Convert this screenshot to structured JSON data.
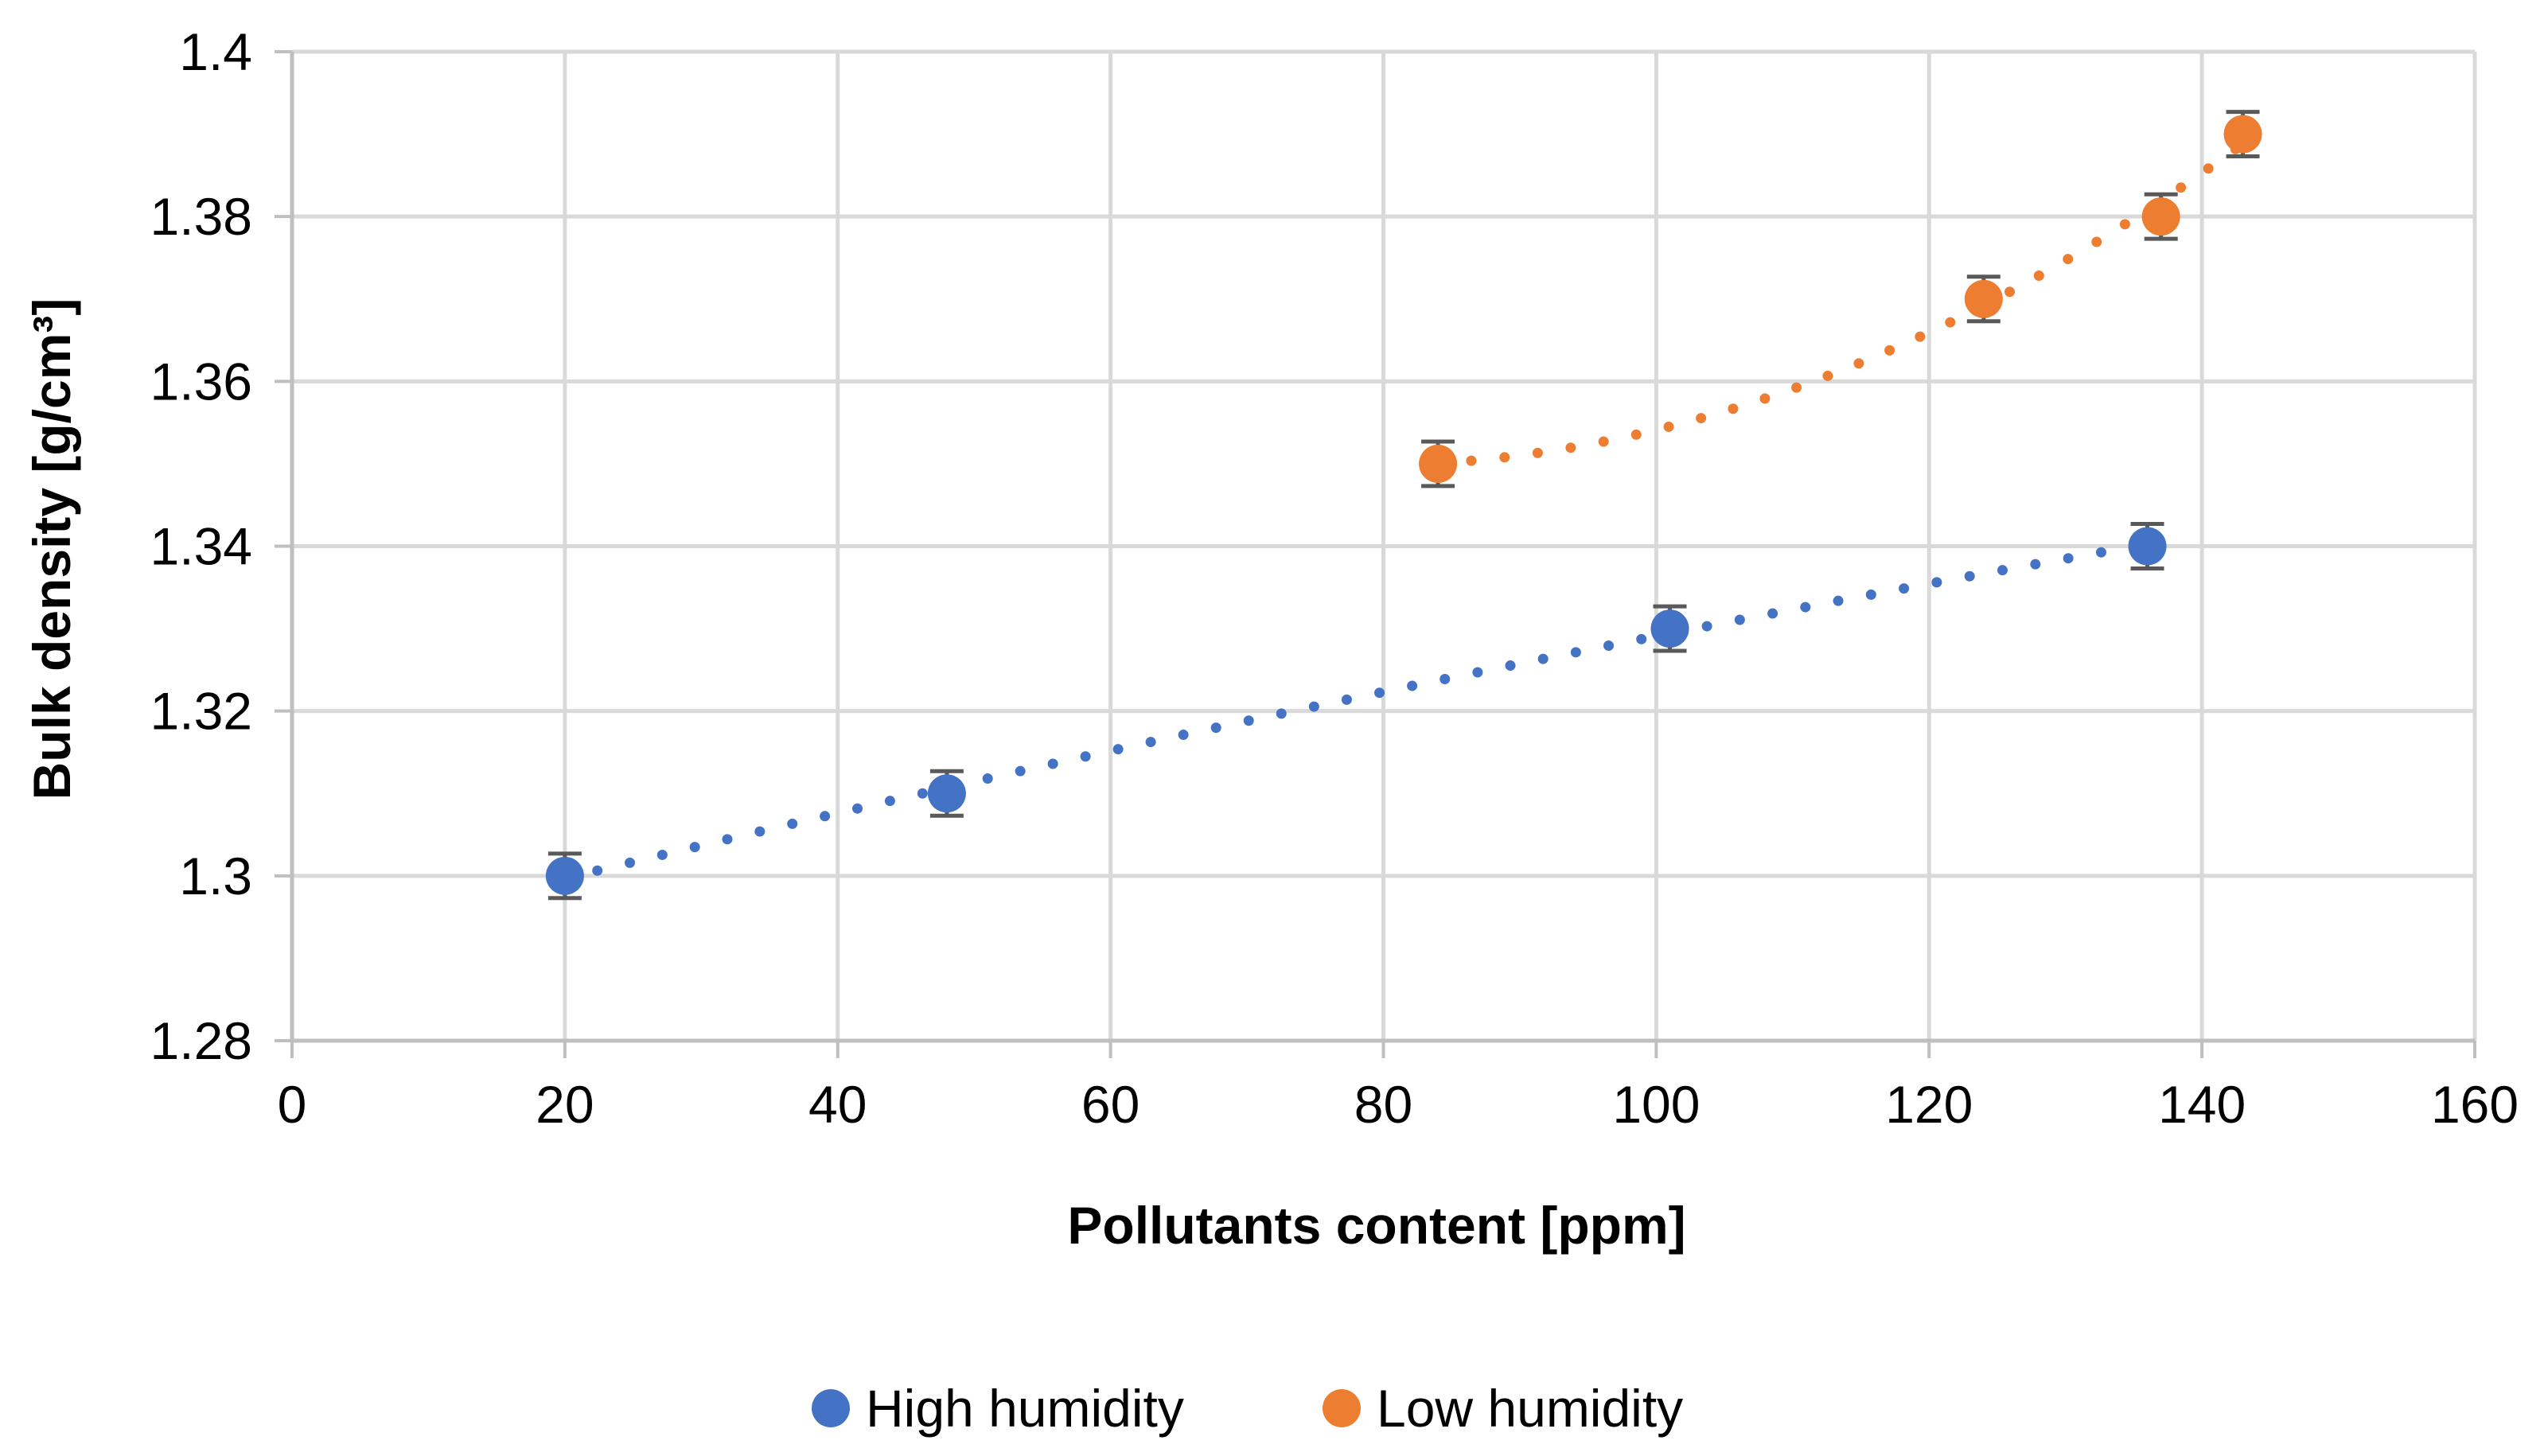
{
  "chart_data": {
    "type": "scatter",
    "title": "",
    "xlabel": "Pollutants content [ppm]",
    "ylabel": "Bulk density [g/cm³]",
    "xlim": [
      0,
      160
    ],
    "ylim": [
      1.28,
      1.4
    ],
    "x_ticks": [
      0,
      20,
      40,
      60,
      80,
      100,
      120,
      140,
      160
    ],
    "x_tick_labels": [
      "0",
      "20",
      "40",
      "60",
      "80",
      "100",
      "120",
      "140",
      "160"
    ],
    "y_ticks": [
      1.28,
      1.3,
      1.32,
      1.34,
      1.36,
      1.38,
      1.4
    ],
    "y_tick_labels": [
      "1.28",
      "1.3",
      "1.32",
      "1.34",
      "1.36",
      "1.38",
      "1.4"
    ],
    "grid": true,
    "legend_position": "bottom",
    "error_bar": 0.0027,
    "series": [
      {
        "name": "High humidity",
        "color": "#4472C4",
        "x": [
          20,
          48,
          101,
          136
        ],
        "y": [
          1.3,
          1.31,
          1.33,
          1.34
        ],
        "trendline": {
          "type": "polynomial",
          "style": "dotted",
          "x_range": [
            20,
            136
          ]
        }
      },
      {
        "name": "Low humidity",
        "color": "#ED7D31",
        "x": [
          84,
          124,
          137,
          143
        ],
        "y": [
          1.35,
          1.37,
          1.38,
          1.39
        ],
        "trendline": {
          "type": "polynomial",
          "style": "dotted",
          "x_range": [
            84,
            143
          ]
        }
      }
    ]
  }
}
